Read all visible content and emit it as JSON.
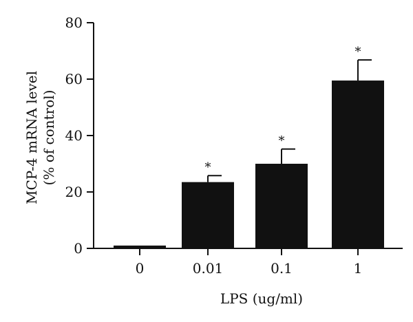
{
  "chart_data": {
    "type": "bar",
    "categories": [
      "0",
      "0.01",
      "0.1",
      "1"
    ],
    "values": [
      1,
      23.5,
      30,
      59.5
    ],
    "errors": [
      0,
      2.3,
      5.2,
      7.3
    ],
    "significance": [
      "",
      "*",
      "*",
      "*"
    ],
    "xlabel": "LPS (ug/ml)",
    "ylabel_lines": [
      "MCP-4 mRNA level",
      "(% of control)"
    ],
    "ylim": [
      0,
      80
    ],
    "yticks": [
      0,
      20,
      40,
      60,
      80
    ],
    "bar_color": "#111111",
    "grid": false,
    "legend": "none"
  }
}
